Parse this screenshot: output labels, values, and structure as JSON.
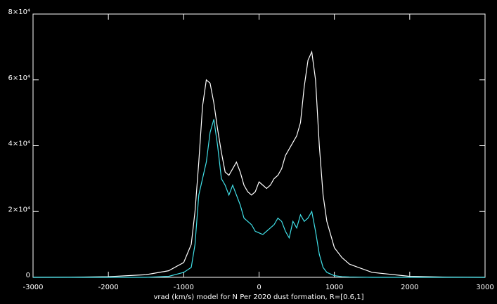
{
  "chart_data": {
    "type": "line",
    "x_label": "vrad (km/s) model for N Per 2020 dust formation, R=[0.6,1]",
    "x": [
      -3000,
      -2500,
      -2000,
      -1500,
      -1200,
      -1000,
      -900,
      -850,
      -800,
      -750,
      -700,
      -650,
      -600,
      -550,
      -500,
      -450,
      -400,
      -350,
      -300,
      -250,
      -200,
      -150,
      -100,
      -50,
      0,
      50,
      100,
      150,
      200,
      250,
      300,
      350,
      400,
      450,
      500,
      550,
      600,
      650,
      700,
      750,
      800,
      850,
      900,
      1000,
      1100,
      1200,
      1500,
      2000,
      2500,
      3000
    ],
    "series": [
      {
        "color": "#ffffff",
        "values": [
          0,
          20,
          200,
          800,
          2000,
          4500,
          10000,
          20000,
          35000,
          52000,
          60000,
          59000,
          53000,
          45000,
          38000,
          32000,
          31000,
          33000,
          35000,
          32000,
          28000,
          26000,
          25000,
          26000,
          29000,
          28000,
          27000,
          28000,
          30000,
          31000,
          33000,
          37000,
          39000,
          41000,
          43000,
          47000,
          58000,
          66000,
          68500,
          60000,
          40000,
          25000,
          17000,
          9000,
          6000,
          4000,
          1500,
          300,
          50,
          0
        ]
      },
      {
        "color": "#40e0e8",
        "values": [
          0,
          0,
          0,
          0,
          300,
          1500,
          3000,
          10000,
          25000,
          30000,
          35000,
          44000,
          48000,
          40000,
          30000,
          28000,
          25000,
          28000,
          25000,
          22000,
          18000,
          17000,
          16000,
          14000,
          13500,
          13000,
          14000,
          15000,
          16000,
          18000,
          17000,
          14000,
          12000,
          17000,
          15000,
          19000,
          17000,
          18000,
          20000,
          14000,
          7000,
          3000,
          1500,
          500,
          200,
          100,
          0,
          0,
          0,
          0
        ]
      }
    ],
    "xlim": [
      -3000,
      3000
    ],
    "xticks": [
      -3000,
      -2000,
      -1000,
      0,
      1000,
      2000,
      3000
    ],
    "ylim": [
      0,
      80000
    ],
    "yticks": [
      0,
      {
        "value": 20000,
        "label": "2×10⁴"
      },
      {
        "value": 40000,
        "label": "4×10⁴"
      },
      {
        "value": 60000,
        "label": "6×10⁴"
      },
      {
        "value": 80000,
        "label": "8×10⁴"
      }
    ]
  }
}
